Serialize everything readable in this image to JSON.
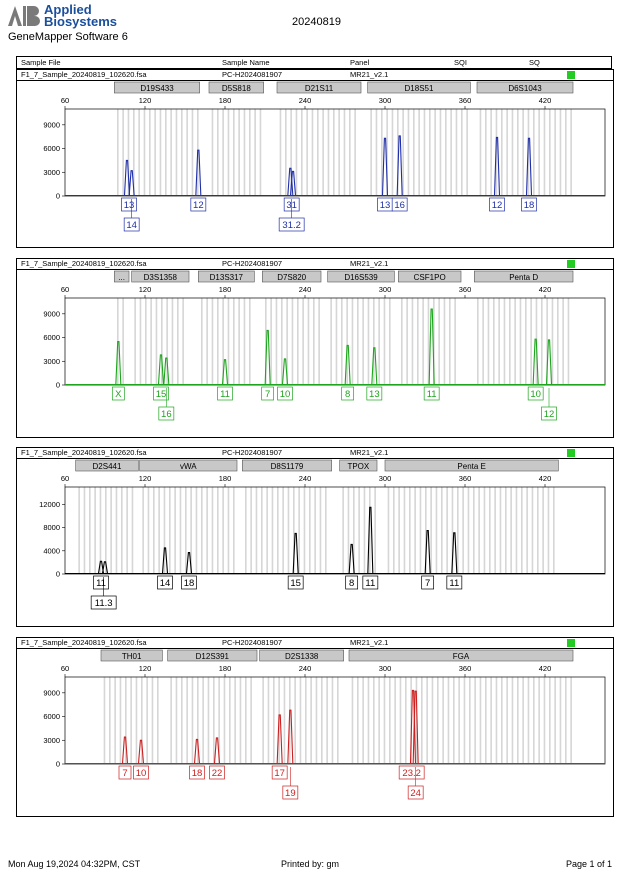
{
  "header": {
    "brand_line1": "Applied",
    "brand_line2": "Biosystems",
    "software": "GeneMapper Software 6",
    "run_date": "20240819",
    "columns": [
      "Sample File",
      "Sample Name",
      "Panel",
      "SQI",
      "SQ"
    ]
  },
  "colors": {
    "blue": "#1f2fa8",
    "green": "#1ea51e",
    "black": "#000000",
    "red": "#cc1f1f",
    "status": "#22cc22",
    "bin": "#d6d6d6"
  },
  "chart_data": [
    {
      "type": "line",
      "dye": "blue",
      "sample_file": "F1_7_Sample_20240819_102620.fsa",
      "sample_name": "PC-H2024081907",
      "panel": "MR21_v2.1",
      "markers": [
        {
          "name": "D19S433",
          "start": 97,
          "end": 161
        },
        {
          "name": "D5S818",
          "start": 168,
          "end": 209
        },
        {
          "name": "D21S11",
          "start": 219,
          "end": 282
        },
        {
          "name": "D18S51",
          "start": 287,
          "end": 364
        },
        {
          "name": "D6S1043",
          "start": 369,
          "end": 441
        }
      ],
      "x_ticks": [
        60,
        120,
        180,
        240,
        300,
        360,
        420
      ],
      "y_ticks": [
        0,
        3000,
        6000,
        9000
      ],
      "xlim": [
        60,
        465
      ],
      "ylim": [
        0,
        11000
      ],
      "peaks": [
        {
          "x": 106.5,
          "y": 4500
        },
        {
          "x": 110,
          "y": 3200
        },
        {
          "x": 160,
          "y": 5800
        },
        {
          "x": 229,
          "y": 3500
        },
        {
          "x": 231,
          "y": 3100
        },
        {
          "x": 300,
          "y": 7300
        },
        {
          "x": 311,
          "y": 7600
        },
        {
          "x": 384,
          "y": 7400
        },
        {
          "x": 408,
          "y": 7300
        }
      ],
      "allele_labels": [
        {
          "x": 108,
          "row": 1,
          "text": "13"
        },
        {
          "x": 110,
          "row": 2,
          "text": "14"
        },
        {
          "x": 160,
          "row": 1,
          "text": "12"
        },
        {
          "x": 230,
          "row": 1,
          "text": "31"
        },
        {
          "x": 230,
          "row": 2,
          "text": "31.2"
        },
        {
          "x": 300,
          "row": 1,
          "text": "13"
        },
        {
          "x": 311,
          "row": 1,
          "text": "16"
        },
        {
          "x": 384,
          "row": 1,
          "text": "12"
        },
        {
          "x": 408,
          "row": 1,
          "text": "18"
        }
      ]
    },
    {
      "type": "line",
      "dye": "green",
      "sample_file": "F1_7_Sample_20240819_102620.fsa",
      "sample_name": "PC-H2024081907",
      "panel": "MR21_v2.1",
      "markers": [
        {
          "name": "...",
          "start": 97,
          "end": 108
        },
        {
          "name": "D3S1358",
          "start": 110,
          "end": 153
        },
        {
          "name": "D13S317",
          "start": 160,
          "end": 202
        },
        {
          "name": "D7S820",
          "start": 208,
          "end": 252
        },
        {
          "name": "D16S539",
          "start": 257,
          "end": 307
        },
        {
          "name": "CSF1PO",
          "start": 310,
          "end": 357
        },
        {
          "name": "Penta D",
          "start": 367,
          "end": 441
        }
      ],
      "x_ticks": [
        60,
        120,
        180,
        240,
        300,
        360,
        420
      ],
      "y_ticks": [
        0,
        3000,
        6000,
        9000
      ],
      "xlim": [
        60,
        465
      ],
      "ylim": [
        0,
        11000
      ],
      "peaks": [
        {
          "x": 100,
          "y": 5500
        },
        {
          "x": 132,
          "y": 3800
        },
        {
          "x": 136,
          "y": 3400
        },
        {
          "x": 180,
          "y": 3200
        },
        {
          "x": 212,
          "y": 6900
        },
        {
          "x": 225,
          "y": 3300
        },
        {
          "x": 272,
          "y": 5000
        },
        {
          "x": 292,
          "y": 4700
        },
        {
          "x": 335,
          "y": 9600
        },
        {
          "x": 413,
          "y": 5800
        },
        {
          "x": 423,
          "y": 5700
        }
      ],
      "allele_labels": [
        {
          "x": 100,
          "row": 1,
          "text": "X"
        },
        {
          "x": 132,
          "row": 1,
          "text": "15"
        },
        {
          "x": 136,
          "row": 2,
          "text": "16"
        },
        {
          "x": 180,
          "row": 1,
          "text": "11"
        },
        {
          "x": 212,
          "row": 1,
          "text": "7"
        },
        {
          "x": 225,
          "row": 1,
          "text": "10"
        },
        {
          "x": 272,
          "row": 1,
          "text": "8"
        },
        {
          "x": 292,
          "row": 1,
          "text": "13"
        },
        {
          "x": 335,
          "row": 1,
          "text": "11"
        },
        {
          "x": 413,
          "row": 1,
          "text": "10"
        },
        {
          "x": 423,
          "row": 2,
          "text": "12"
        }
      ]
    },
    {
      "type": "line",
      "dye": "black",
      "sample_file": "F1_7_Sample_20240819_102620.fsa",
      "sample_name": "PC-H2024081907",
      "panel": "MR21_v2.1",
      "markers": [
        {
          "name": "D2S441",
          "start": 68,
          "end": 115
        },
        {
          "name": "vWA",
          "start": 116,
          "end": 189
        },
        {
          "name": "D8S1179",
          "start": 193,
          "end": 260
        },
        {
          "name": "TPOX",
          "start": 266,
          "end": 294
        },
        {
          "name": "Penta E",
          "start": 300,
          "end": 430
        }
      ],
      "x_ticks": [
        60,
        120,
        180,
        240,
        300,
        360,
        420
      ],
      "y_ticks": [
        0,
        4000,
        8000,
        12000
      ],
      "xlim": [
        60,
        465
      ],
      "ylim": [
        0,
        15000
      ],
      "peaks": [
        {
          "x": 87,
          "y": 2200
        },
        {
          "x": 90,
          "y": 2100
        },
        {
          "x": 135,
          "y": 4500
        },
        {
          "x": 153,
          "y": 3700
        },
        {
          "x": 233,
          "y": 7000
        },
        {
          "x": 275,
          "y": 5100
        },
        {
          "x": 289,
          "y": 11500
        },
        {
          "x": 332,
          "y": 7500
        },
        {
          "x": 352,
          "y": 7100
        }
      ],
      "allele_labels": [
        {
          "x": 87,
          "row": 1,
          "text": "11"
        },
        {
          "x": 89,
          "row": 2,
          "text": "11.3"
        },
        {
          "x": 135,
          "row": 1,
          "text": "14"
        },
        {
          "x": 153,
          "row": 1,
          "text": "18"
        },
        {
          "x": 233,
          "row": 1,
          "text": "15"
        },
        {
          "x": 275,
          "row": 1,
          "text": "8"
        },
        {
          "x": 289,
          "row": 1,
          "text": "11"
        },
        {
          "x": 332,
          "row": 1,
          "text": "7"
        },
        {
          "x": 352,
          "row": 1,
          "text": "11"
        }
      ]
    },
    {
      "type": "line",
      "dye": "red",
      "sample_file": "F1_7_Sample_20240819_102620.fsa",
      "sample_name": "PC-H2024081907",
      "panel": "MR21_v2.1",
      "markers": [
        {
          "name": "TH01",
          "start": 87,
          "end": 133
        },
        {
          "name": "D12S391",
          "start": 137,
          "end": 204
        },
        {
          "name": "D2S1338",
          "start": 206,
          "end": 269
        },
        {
          "name": "FGA",
          "start": 273,
          "end": 441
        }
      ],
      "x_ticks": [
        60,
        120,
        180,
        240,
        300,
        360,
        420
      ],
      "y_ticks": [
        0,
        3000,
        6000,
        9000
      ],
      "xlim": [
        60,
        465
      ],
      "ylim": [
        0,
        11000
      ],
      "peaks": [
        {
          "x": 105,
          "y": 3400
        },
        {
          "x": 117,
          "y": 3000
        },
        {
          "x": 159,
          "y": 3100
        },
        {
          "x": 174,
          "y": 3300
        },
        {
          "x": 221,
          "y": 6200
        },
        {
          "x": 229,
          "y": 6800
        },
        {
          "x": 321,
          "y": 9300
        },
        {
          "x": 323,
          "y": 9200
        }
      ],
      "allele_labels": [
        {
          "x": 105,
          "row": 1,
          "text": "7"
        },
        {
          "x": 117,
          "row": 1,
          "text": "10"
        },
        {
          "x": 159,
          "row": 1,
          "text": "18"
        },
        {
          "x": 174,
          "row": 1,
          "text": "22"
        },
        {
          "x": 221,
          "row": 1,
          "text": "17"
        },
        {
          "x": 229,
          "row": 2,
          "text": "19"
        },
        {
          "x": 320,
          "row": 1,
          "text": "23.2"
        },
        {
          "x": 323,
          "row": 2,
          "text": "24"
        }
      ]
    }
  ],
  "footer": {
    "date": "Mon Aug 19,2024 04:32PM, CST",
    "printed_by": "Printed by: gm",
    "page": "Page 1 of 1"
  }
}
